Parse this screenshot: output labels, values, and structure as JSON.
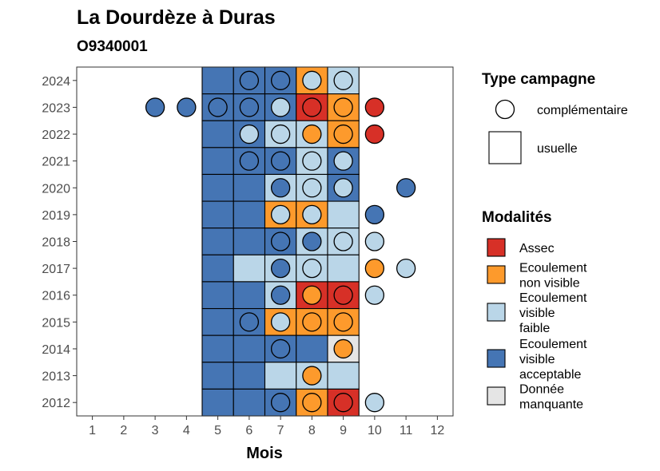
{
  "chart_data": {
    "type": "heatmap",
    "title": "La Dourdèze à Duras",
    "subtitle": "O9340001",
    "xlabel": "Mois",
    "ylabel": "",
    "x_ticks": [
      "1",
      "2",
      "3",
      "4",
      "5",
      "6",
      "7",
      "8",
      "9",
      "10",
      "11",
      "12"
    ],
    "y_ticks": [
      "2012",
      "2013",
      "2014",
      "2015",
      "2016",
      "2017",
      "2018",
      "2019",
      "2020",
      "2021",
      "2022",
      "2023",
      "2024"
    ],
    "xlim": [
      0.5,
      12.5
    ],
    "ylim": [
      2011.5,
      2024.5
    ],
    "grid": false,
    "legend_position": "right",
    "colors": {
      "assec": "#d73027",
      "non_visible": "#fd9a2c",
      "faible": "#bad6e8",
      "acceptable": "#4575b4",
      "manquante": "#e5e5e5"
    },
    "legend_type": {
      "title": "Type campagne",
      "items": [
        {
          "key": "complementaire",
          "label": "complémentaire",
          "shape": "circle"
        },
        {
          "key": "usuelle",
          "label": "usuelle",
          "shape": "square"
        }
      ]
    },
    "legend_modalites": {
      "title": "Modalités",
      "items": [
        {
          "key": "assec",
          "lines": [
            "Assec"
          ]
        },
        {
          "key": "non_visible",
          "lines": [
            "Ecoulement",
            "non visible"
          ]
        },
        {
          "key": "faible",
          "lines": [
            "Ecoulement",
            "visible",
            "faible"
          ]
        },
        {
          "key": "acceptable",
          "lines": [
            "Ecoulement",
            "visible",
            "acceptable"
          ]
        },
        {
          "key": "manquante",
          "lines": [
            "Donnée",
            "manquante"
          ]
        }
      ]
    },
    "usuelle": [
      {
        "year": 2024,
        "month": 5,
        "value": "acceptable"
      },
      {
        "year": 2024,
        "month": 6,
        "value": "acceptable"
      },
      {
        "year": 2024,
        "month": 7,
        "value": "acceptable"
      },
      {
        "year": 2024,
        "month": 8,
        "value": "non_visible"
      },
      {
        "year": 2024,
        "month": 9,
        "value": "faible"
      },
      {
        "year": 2023,
        "month": 5,
        "value": "acceptable"
      },
      {
        "year": 2023,
        "month": 6,
        "value": "acceptable"
      },
      {
        "year": 2023,
        "month": 7,
        "value": "acceptable"
      },
      {
        "year": 2023,
        "month": 8,
        "value": "assec"
      },
      {
        "year": 2023,
        "month": 9,
        "value": "non_visible"
      },
      {
        "year": 2022,
        "month": 5,
        "value": "acceptable"
      },
      {
        "year": 2022,
        "month": 6,
        "value": "acceptable"
      },
      {
        "year": 2022,
        "month": 7,
        "value": "faible"
      },
      {
        "year": 2022,
        "month": 8,
        "value": "faible"
      },
      {
        "year": 2022,
        "month": 9,
        "value": "non_visible"
      },
      {
        "year": 2021,
        "month": 5,
        "value": "acceptable"
      },
      {
        "year": 2021,
        "month": 6,
        "value": "acceptable"
      },
      {
        "year": 2021,
        "month": 7,
        "value": "acceptable"
      },
      {
        "year": 2021,
        "month": 8,
        "value": "faible"
      },
      {
        "year": 2021,
        "month": 9,
        "value": "acceptable"
      },
      {
        "year": 2020,
        "month": 5,
        "value": "acceptable"
      },
      {
        "year": 2020,
        "month": 6,
        "value": "acceptable"
      },
      {
        "year": 2020,
        "month": 7,
        "value": "faible"
      },
      {
        "year": 2020,
        "month": 8,
        "value": "faible"
      },
      {
        "year": 2020,
        "month": 9,
        "value": "acceptable"
      },
      {
        "year": 2019,
        "month": 5,
        "value": "acceptable"
      },
      {
        "year": 2019,
        "month": 6,
        "value": "acceptable"
      },
      {
        "year": 2019,
        "month": 7,
        "value": "non_visible"
      },
      {
        "year": 2019,
        "month": 8,
        "value": "non_visible"
      },
      {
        "year": 2019,
        "month": 9,
        "value": "faible"
      },
      {
        "year": 2018,
        "month": 5,
        "value": "acceptable"
      },
      {
        "year": 2018,
        "month": 6,
        "value": "acceptable"
      },
      {
        "year": 2018,
        "month": 7,
        "value": "acceptable"
      },
      {
        "year": 2018,
        "month": 8,
        "value": "faible"
      },
      {
        "year": 2018,
        "month": 9,
        "value": "faible"
      },
      {
        "year": 2017,
        "month": 5,
        "value": "acceptable"
      },
      {
        "year": 2017,
        "month": 6,
        "value": "faible"
      },
      {
        "year": 2017,
        "month": 7,
        "value": "faible"
      },
      {
        "year": 2017,
        "month": 8,
        "value": "faible"
      },
      {
        "year": 2017,
        "month": 9,
        "value": "faible"
      },
      {
        "year": 2016,
        "month": 5,
        "value": "acceptable"
      },
      {
        "year": 2016,
        "month": 6,
        "value": "acceptable"
      },
      {
        "year": 2016,
        "month": 7,
        "value": "faible"
      },
      {
        "year": 2016,
        "month": 8,
        "value": "assec"
      },
      {
        "year": 2016,
        "month": 9,
        "value": "assec"
      },
      {
        "year": 2015,
        "month": 5,
        "value": "acceptable"
      },
      {
        "year": 2015,
        "month": 6,
        "value": "acceptable"
      },
      {
        "year": 2015,
        "month": 7,
        "value": "non_visible"
      },
      {
        "year": 2015,
        "month": 8,
        "value": "non_visible"
      },
      {
        "year": 2015,
        "month": 9,
        "value": "non_visible"
      },
      {
        "year": 2014,
        "month": 5,
        "value": "acceptable"
      },
      {
        "year": 2014,
        "month": 6,
        "value": "acceptable"
      },
      {
        "year": 2014,
        "month": 7,
        "value": "acceptable"
      },
      {
        "year": 2014,
        "month": 8,
        "value": "acceptable"
      },
      {
        "year": 2014,
        "month": 9,
        "value": "manquante"
      },
      {
        "year": 2013,
        "month": 5,
        "value": "acceptable"
      },
      {
        "year": 2013,
        "month": 6,
        "value": "acceptable"
      },
      {
        "year": 2013,
        "month": 7,
        "value": "faible"
      },
      {
        "year": 2013,
        "month": 8,
        "value": "faible"
      },
      {
        "year": 2013,
        "month": 9,
        "value": "faible"
      },
      {
        "year": 2012,
        "month": 5,
        "value": "acceptable"
      },
      {
        "year": 2012,
        "month": 6,
        "value": "acceptable"
      },
      {
        "year": 2012,
        "month": 7,
        "value": "acceptable"
      },
      {
        "year": 2012,
        "month": 8,
        "value": "non_visible"
      },
      {
        "year": 2012,
        "month": 9,
        "value": "assec"
      }
    ],
    "complementaire": [
      {
        "year": 2024,
        "month": 6,
        "value": "acceptable"
      },
      {
        "year": 2024,
        "month": 7,
        "value": "acceptable"
      },
      {
        "year": 2024,
        "month": 8,
        "value": "faible"
      },
      {
        "year": 2024,
        "month": 9,
        "value": "faible"
      },
      {
        "year": 2023,
        "month": 3,
        "value": "acceptable"
      },
      {
        "year": 2023,
        "month": 4,
        "value": "acceptable"
      },
      {
        "year": 2023,
        "month": 5,
        "value": "acceptable"
      },
      {
        "year": 2023,
        "month": 6,
        "value": "acceptable"
      },
      {
        "year": 2023,
        "month": 7,
        "value": "faible"
      },
      {
        "year": 2023,
        "month": 8,
        "value": "assec"
      },
      {
        "year": 2023,
        "month": 9,
        "value": "non_visible"
      },
      {
        "year": 2023,
        "month": 10,
        "value": "assec"
      },
      {
        "year": 2022,
        "month": 6,
        "value": "faible"
      },
      {
        "year": 2022,
        "month": 7,
        "value": "faible"
      },
      {
        "year": 2022,
        "month": 8,
        "value": "non_visible"
      },
      {
        "year": 2022,
        "month": 9,
        "value": "non_visible"
      },
      {
        "year": 2022,
        "month": 10,
        "value": "assec"
      },
      {
        "year": 2021,
        "month": 6,
        "value": "acceptable"
      },
      {
        "year": 2021,
        "month": 7,
        "value": "acceptable"
      },
      {
        "year": 2021,
        "month": 8,
        "value": "faible"
      },
      {
        "year": 2021,
        "month": 9,
        "value": "faible"
      },
      {
        "year": 2020,
        "month": 7,
        "value": "acceptable"
      },
      {
        "year": 2020,
        "month": 8,
        "value": "faible"
      },
      {
        "year": 2020,
        "month": 9,
        "value": "faible"
      },
      {
        "year": 2020,
        "month": 11,
        "value": "acceptable"
      },
      {
        "year": 2019,
        "month": 7,
        "value": "faible"
      },
      {
        "year": 2019,
        "month": 8,
        "value": "faible"
      },
      {
        "year": 2019,
        "month": 10,
        "value": "acceptable"
      },
      {
        "year": 2018,
        "month": 7,
        "value": "acceptable"
      },
      {
        "year": 2018,
        "month": 8,
        "value": "acceptable"
      },
      {
        "year": 2018,
        "month": 9,
        "value": "faible"
      },
      {
        "year": 2018,
        "month": 10,
        "value": "faible"
      },
      {
        "year": 2017,
        "month": 7,
        "value": "acceptable"
      },
      {
        "year": 2017,
        "month": 8,
        "value": "faible"
      },
      {
        "year": 2017,
        "month": 10,
        "value": "non_visible"
      },
      {
        "year": 2017,
        "month": 11,
        "value": "faible"
      },
      {
        "year": 2016,
        "month": 7,
        "value": "acceptable"
      },
      {
        "year": 2016,
        "month": 8,
        "value": "non_visible"
      },
      {
        "year": 2016,
        "month": 9,
        "value": "assec"
      },
      {
        "year": 2016,
        "month": 10,
        "value": "faible"
      },
      {
        "year": 2015,
        "month": 6,
        "value": "acceptable"
      },
      {
        "year": 2015,
        "month": 7,
        "value": "faible"
      },
      {
        "year": 2015,
        "month": 8,
        "value": "non_visible"
      },
      {
        "year": 2015,
        "month": 9,
        "value": "non_visible"
      },
      {
        "year": 2014,
        "month": 7,
        "value": "acceptable"
      },
      {
        "year": 2014,
        "month": 9,
        "value": "non_visible"
      },
      {
        "year": 2013,
        "month": 8,
        "value": "non_visible"
      },
      {
        "year": 2012,
        "month": 7,
        "value": "acceptable"
      },
      {
        "year": 2012,
        "month": 8,
        "value": "non_visible"
      },
      {
        "year": 2012,
        "month": 9,
        "value": "assec"
      },
      {
        "year": 2012,
        "month": 10,
        "value": "faible"
      }
    ]
  }
}
